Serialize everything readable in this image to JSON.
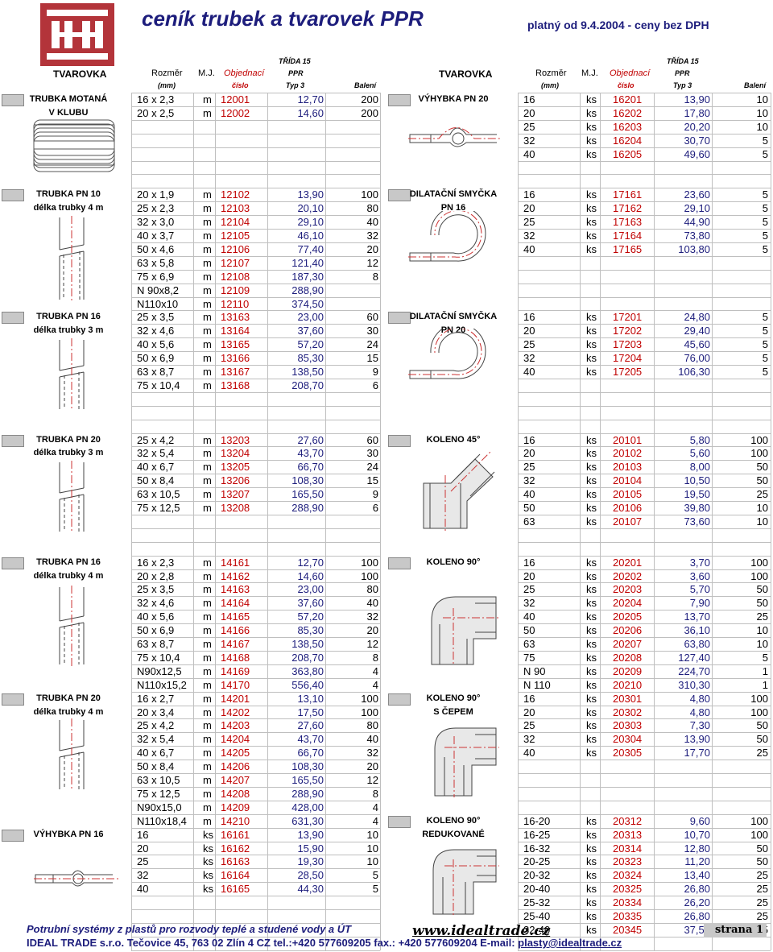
{
  "header": {
    "title": "ceník trubek a tvarovek PPR",
    "valid": "platný od 9.4.2004 - ceny bez DPH",
    "trida": "TŘÍDA 15",
    "tvarovka": "TVAROVKA",
    "rozmer": "Rozměr",
    "mm": "(mm)",
    "mj": "M.J.",
    "objednaci": "Objednací",
    "cislo": "číslo",
    "ppr": "PPR",
    "typ": "Typ 3",
    "baleni": "Balení"
  },
  "left_sections": [
    {
      "label": [
        "TRUBKA MOTANÁ",
        "V KLUBU"
      ],
      "start": 0,
      "rows": [
        [
          "16 x 2,3",
          "m",
          "12001",
          "12,70",
          "200"
        ],
        [
          "20 x 2,5",
          "m",
          "12002",
          "14,60",
          "200"
        ]
      ]
    },
    {
      "label": [
        "TRUBKA PN 10",
        "délka trubky 4 m"
      ],
      "start": 7,
      "rows": [
        [
          "20 x 1,9",
          "m",
          "12102",
          "13,90",
          "100"
        ],
        [
          "25 x 2,3",
          "m",
          "12103",
          "20,10",
          "80"
        ],
        [
          "32 x 3,0",
          "m",
          "12104",
          "29,10",
          "40"
        ],
        [
          "40 x 3,7",
          "m",
          "12105",
          "46,10",
          "32"
        ],
        [
          "50 x 4,6",
          "m",
          "12106",
          "77,40",
          "20"
        ],
        [
          "63 x 5,8",
          "m",
          "12107",
          "121,40",
          "12"
        ],
        [
          "75 x 6,9",
          "m",
          "12108",
          "187,30",
          "8"
        ],
        [
          "N 90x8,2",
          "m",
          "12109",
          "288,90",
          ""
        ],
        [
          "N110x10",
          "m",
          "12110",
          "374,50",
          ""
        ]
      ]
    },
    {
      "label": [
        "TRUBKA PN 16",
        "délka trubky 3 m"
      ],
      "start": 16,
      "rows": [
        [
          "25 x 3,5",
          "m",
          "13163",
          "23,00",
          "60"
        ],
        [
          "32 x 4,6",
          "m",
          "13164",
          "37,60",
          "30"
        ],
        [
          "40 x 5,6",
          "m",
          "13165",
          "57,20",
          "24"
        ],
        [
          "50 x 6,9",
          "m",
          "13166",
          "85,30",
          "15"
        ],
        [
          "63 x 8,7",
          "m",
          "13167",
          "138,50",
          "9"
        ],
        [
          "75 x 10,4",
          "m",
          "13168",
          "208,70",
          "6"
        ]
      ]
    },
    {
      "label": [
        "TRUBKA PN 20",
        "délka trubky 3 m"
      ],
      "start": 25,
      "rows": [
        [
          "25 x 4,2",
          "m",
          "13203",
          "27,60",
          "60"
        ],
        [
          "32 x 5,4",
          "m",
          "13204",
          "43,70",
          "30"
        ],
        [
          "40 x 6,7",
          "m",
          "13205",
          "66,70",
          "24"
        ],
        [
          "50 x 8,4",
          "m",
          "13206",
          "108,30",
          "15"
        ],
        [
          "63 x 10,5",
          "m",
          "13207",
          "165,50",
          "9"
        ],
        [
          "75 x 12,5",
          "m",
          "13208",
          "288,90",
          "6"
        ]
      ]
    },
    {
      "label": [
        "TRUBKA PN 16",
        "délka trubky 4 m"
      ],
      "start": 34,
      "rows": [
        [
          "16 x 2,3",
          "m",
          "14161",
          "12,70",
          "100"
        ],
        [
          "20 x 2,8",
          "m",
          "14162",
          "14,60",
          "100"
        ],
        [
          "25 x 3,5",
          "m",
          "14163",
          "23,00",
          "80"
        ],
        [
          "32 x 4,6",
          "m",
          "14164",
          "37,60",
          "40"
        ],
        [
          "40 x 5,6",
          "m",
          "14165",
          "57,20",
          "32"
        ],
        [
          "50 x 6,9",
          "m",
          "14166",
          "85,30",
          "20"
        ],
        [
          "63 x 8,7",
          "m",
          "14167",
          "138,50",
          "12"
        ],
        [
          "75 x 10,4",
          "m",
          "14168",
          "208,70",
          "8"
        ],
        [
          "N90x12,5",
          "m",
          "14169",
          "363,80",
          "4"
        ],
        [
          "N110x15,2",
          "m",
          "14170",
          "556,40",
          "4"
        ]
      ]
    },
    {
      "label": [
        "TRUBKA PN 20",
        "délka trubky 4 m"
      ],
      "start": 44,
      "rows": [
        [
          "16 x 2,7",
          "m",
          "14201",
          "13,10",
          "100"
        ],
        [
          "20 x 3,4",
          "m",
          "14202",
          "17,50",
          "100"
        ],
        [
          "25 x 4,2",
          "m",
          "14203",
          "27,60",
          "80"
        ],
        [
          "32 x 5,4",
          "m",
          "14204",
          "43,70",
          "40"
        ],
        [
          "40 x 6,7",
          "m",
          "14205",
          "66,70",
          "32"
        ],
        [
          "50 x 8,4",
          "m",
          "14206",
          "108,30",
          "20"
        ],
        [
          "63 x 10,5",
          "m",
          "14207",
          "165,50",
          "12"
        ],
        [
          "75 x 12,5",
          "m",
          "14208",
          "288,90",
          "8"
        ],
        [
          "N90x15,0",
          "m",
          "14209",
          "428,00",
          "4"
        ],
        [
          "N110x18,4",
          "m",
          "14210",
          "631,30",
          "4"
        ]
      ]
    },
    {
      "label": [
        "VÝHYBKA PN 16"
      ],
      "start": 54,
      "rows": [
        [
          "16",
          "ks",
          "16161",
          "13,90",
          "10"
        ],
        [
          "20",
          "ks",
          "16162",
          "15,90",
          "10"
        ],
        [
          "25",
          "ks",
          "16163",
          "19,30",
          "10"
        ],
        [
          "32",
          "ks",
          "16164",
          "28,50",
          "5"
        ],
        [
          "40",
          "ks",
          "16165",
          "44,30",
          "5"
        ]
      ]
    }
  ],
  "right_sections": [
    {
      "label": [
        "VÝHYBKA PN 20"
      ],
      "start": 0,
      "rows": [
        [
          "16",
          "ks",
          "16201",
          "13,90",
          "10"
        ],
        [
          "20",
          "ks",
          "16202",
          "17,80",
          "10"
        ],
        [
          "25",
          "ks",
          "16203",
          "20,20",
          "10"
        ],
        [
          "32",
          "ks",
          "16204",
          "30,70",
          "5"
        ],
        [
          "40",
          "ks",
          "16205",
          "49,60",
          "5"
        ]
      ]
    },
    {
      "label": [
        "DILATAČNÍ SMYČKA",
        "PN 16"
      ],
      "start": 7,
      "rows": [
        [
          "16",
          "ks",
          "17161",
          "23,60",
          "5"
        ],
        [
          "20",
          "ks",
          "17162",
          "29,10",
          "5"
        ],
        [
          "25",
          "ks",
          "17163",
          "44,90",
          "5"
        ],
        [
          "32",
          "ks",
          "17164",
          "73,80",
          "5"
        ],
        [
          "40",
          "ks",
          "17165",
          "103,80",
          "5"
        ]
      ]
    },
    {
      "label": [
        "DILATAČNÍ SMYČKA",
        "PN 20"
      ],
      "start": 16,
      "rows": [
        [
          "16",
          "ks",
          "17201",
          "24,80",
          "5"
        ],
        [
          "20",
          "ks",
          "17202",
          "29,40",
          "5"
        ],
        [
          "25",
          "ks",
          "17203",
          "45,60",
          "5"
        ],
        [
          "32",
          "ks",
          "17204",
          "76,00",
          "5"
        ],
        [
          "40",
          "ks",
          "17205",
          "106,30",
          "5"
        ]
      ]
    },
    {
      "label": [
        "KOLENO 45°"
      ],
      "start": 25,
      "rows": [
        [
          "16",
          "ks",
          "20101",
          "5,80",
          "100"
        ],
        [
          "20",
          "ks",
          "20102",
          "5,60",
          "100"
        ],
        [
          "25",
          "ks",
          "20103",
          "8,00",
          "50"
        ],
        [
          "32",
          "ks",
          "20104",
          "10,50",
          "50"
        ],
        [
          "40",
          "ks",
          "20105",
          "19,50",
          "25"
        ],
        [
          "50",
          "ks",
          "20106",
          "39,80",
          "10"
        ],
        [
          "63",
          "ks",
          "20107",
          "73,60",
          "10"
        ]
      ]
    },
    {
      "label": [
        "KOLENO 90°"
      ],
      "start": 34,
      "rows": [
        [
          "16",
          "ks",
          "20201",
          "3,70",
          "100"
        ],
        [
          "20",
          "ks",
          "20202",
          "3,60",
          "100"
        ],
        [
          "25",
          "ks",
          "20203",
          "5,70",
          "50"
        ],
        [
          "32",
          "ks",
          "20204",
          "7,90",
          "50"
        ],
        [
          "40",
          "ks",
          "20205",
          "13,70",
          "25"
        ],
        [
          "50",
          "ks",
          "20206",
          "36,10",
          "10"
        ],
        [
          "63",
          "ks",
          "20207",
          "63,80",
          "10"
        ],
        [
          "75",
          "ks",
          "20208",
          "127,40",
          "5"
        ],
        [
          "N 90",
          "ks",
          "20209",
          "224,70",
          "1"
        ],
        [
          "N 110",
          "ks",
          "20210",
          "310,30",
          "1"
        ]
      ]
    },
    {
      "label": [
        "KOLENO 90°",
        "S ČEPEM"
      ],
      "start": 44,
      "rows": [
        [
          "16",
          "ks",
          "20301",
          "4,80",
          "100"
        ],
        [
          "20",
          "ks",
          "20302",
          "4,80",
          "100"
        ],
        [
          "25",
          "ks",
          "20303",
          "7,30",
          "50"
        ],
        [
          "32",
          "ks",
          "20304",
          "13,90",
          "50"
        ],
        [
          "40",
          "ks",
          "20305",
          "17,70",
          "25"
        ]
      ]
    },
    {
      "label": [
        "KOLENO 90°",
        "REDUKOVANÉ"
      ],
      "start": 53,
      "rows": [
        [
          "16-20",
          "ks",
          "20312",
          "9,60",
          "100"
        ],
        [
          "16-25",
          "ks",
          "20313",
          "10,70",
          "100"
        ],
        [
          "16-32",
          "ks",
          "20314",
          "12,80",
          "50"
        ],
        [
          "20-25",
          "ks",
          "20323",
          "11,20",
          "50"
        ],
        [
          "20-32",
          "ks",
          "20324",
          "13,40",
          "25"
        ],
        [
          "20-40",
          "ks",
          "20325",
          "26,80",
          "25"
        ],
        [
          "25-32",
          "ks",
          "20334",
          "26,20",
          "25"
        ],
        [
          "25-40",
          "ks",
          "20335",
          "26,80",
          "25"
        ],
        [
          "32-40",
          "ks",
          "20345",
          "37,50",
          "25"
        ]
      ]
    }
  ],
  "footer": {
    "line1": "Potrubní systémy z plastů pro rozvody teplé a studené vody a ÚT",
    "web": "www.idealtrade.cz",
    "line2_prefix": "IDEAL TRADE s.r.o. Tečovice 45, 763 02 Zlín 4 CZ tel.:+420 577609205 fax.: +420 577609204 E-mail: ",
    "email": "plasty@idealtrade.cz",
    "page": "strana 1"
  },
  "colors": {
    "brand": "#b3343a",
    "navy": "#1d1d7c",
    "code_red": "#c00000"
  }
}
